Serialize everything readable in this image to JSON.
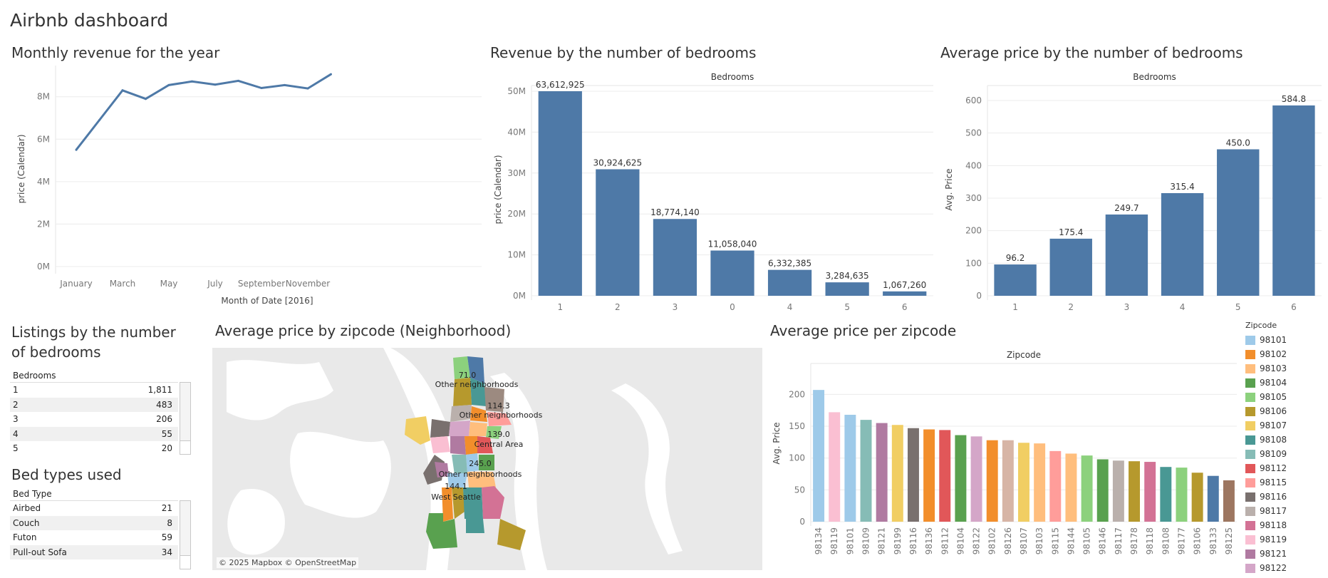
{
  "dashboard_title": "Airbnb dashboard",
  "line_panel": {
    "title": "Monthly revenue for the year"
  },
  "rev_panel": {
    "title": "Revenue by the number of bedrooms"
  },
  "avg_panel": {
    "title": "Average price by the number of bedrooms"
  },
  "listings_panel": {
    "title_line1": "Listings by the number",
    "title_line2": "of bedrooms",
    "column_header": "Bedrooms",
    "rows": [
      {
        "label": "1",
        "value": "1,811"
      },
      {
        "label": "2",
        "value": "483"
      },
      {
        "label": "3",
        "value": "206"
      },
      {
        "label": "4",
        "value": "55"
      },
      {
        "label": "5",
        "value": "20"
      }
    ]
  },
  "bedtypes_panel": {
    "title": "Bed types used",
    "column_header": "Bed Type",
    "rows": [
      {
        "label": "Airbed",
        "value": "21"
      },
      {
        "label": "Couch",
        "value": "8"
      },
      {
        "label": "Futon",
        "value": "59"
      },
      {
        "label": "Pull-out Sofa",
        "value": "34"
      }
    ]
  },
  "map_panel": {
    "title": "Average price by zipcode (Neighborhood)",
    "credit": "© 2025 Mapbox © OpenStreetMap",
    "labels": [
      "71.0",
      "Other neighborhoods",
      "114.3",
      "Other neighborhoods",
      "139.0",
      "Central Area",
      "245.0",
      "Other neighborhoods",
      "144.1",
      "West Seattle"
    ]
  },
  "zip_panel": {
    "title": "Average price per zipcode"
  },
  "legend": {
    "title": "Zipcode",
    "items": [
      {
        "zip": "98101",
        "color": "#9ecae9"
      },
      {
        "zip": "98102",
        "color": "#f28e2b"
      },
      {
        "zip": "98103",
        "color": "#ffbe7d"
      },
      {
        "zip": "98104",
        "color": "#59a14f"
      },
      {
        "zip": "98105",
        "color": "#8cd17d"
      },
      {
        "zip": "98106",
        "color": "#b6992d"
      },
      {
        "zip": "98107",
        "color": "#f1ce63"
      },
      {
        "zip": "98108",
        "color": "#499894"
      },
      {
        "zip": "98109",
        "color": "#86bcb6"
      },
      {
        "zip": "98112",
        "color": "#e15759"
      },
      {
        "zip": "98115",
        "color": "#ff9d9a"
      },
      {
        "zip": "98116",
        "color": "#79706e"
      },
      {
        "zip": "98117",
        "color": "#bab0ac"
      },
      {
        "zip": "98118",
        "color": "#d37295"
      },
      {
        "zip": "98119",
        "color": "#fabfd2"
      },
      {
        "zip": "98121",
        "color": "#b07aa1"
      },
      {
        "zip": "98122",
        "color": "#d4a6c8"
      }
    ]
  },
  "chart_data": [
    {
      "type": "line",
      "title": "Monthly revenue for the year",
      "xlabel": "Month of Date [2016]",
      "ylabel": "price (Calendar)",
      "x": [
        "January",
        "February",
        "March",
        "April",
        "May",
        "June",
        "July",
        "August",
        "September",
        "October",
        "November",
        "December"
      ],
      "x_tick_labels": [
        "January",
        "March",
        "May",
        "July",
        "September",
        "November"
      ],
      "values": [
        5500000,
        6900000,
        8300000,
        7900000,
        8550000,
        8720000,
        8570000,
        8750000,
        8410000,
        8550000,
        8390000,
        9060000
      ],
      "y_ticks": [
        "0M",
        "2M",
        "4M",
        "6M",
        "8M"
      ],
      "ylim": [
        0,
        9200000
      ],
      "color": "#4e79a7",
      "grid": true
    },
    {
      "type": "bar",
      "title": "Revenue by the number of bedrooms",
      "header": "Bedrooms",
      "ylabel": "price (Calendar)",
      "categories": [
        "1",
        "2",
        "3",
        "0",
        "4",
        "5",
        "6"
      ],
      "values": [
        63612925,
        30924625,
        18774140,
        11058040,
        6332385,
        3284635,
        1067260
      ],
      "data_labels": [
        "63,612,925",
        "30,924,625",
        "18,774,140",
        "11,058,040",
        "6,332,385",
        "3,284,635",
        "1,067,260"
      ],
      "y_ticks": [
        "0M",
        "10M",
        "20M",
        "30M",
        "40M",
        "50M"
      ],
      "ylim": [
        0,
        50000000
      ],
      "color": "#4e79a7",
      "grid": true
    },
    {
      "type": "bar",
      "title": "Average price by the number of bedrooms",
      "header": "Bedrooms",
      "ylabel": "Avg. Price",
      "categories": [
        "1",
        "2",
        "3",
        "4",
        "5",
        "6"
      ],
      "values": [
        96.2,
        175.4,
        249.7,
        315.4,
        450.0,
        584.8
      ],
      "data_labels": [
        "96.2",
        "175.4",
        "249.7",
        "315.4",
        "450.0",
        "584.8"
      ],
      "y_ticks": [
        "0",
        "100",
        "200",
        "300",
        "400",
        "500",
        "600"
      ],
      "ylim": [
        0,
        600
      ],
      "color": "#4e79a7",
      "grid": true
    },
    {
      "type": "bar",
      "title": "Average price per zipcode",
      "header": "Zipcode",
      "ylabel": "Avg. Price",
      "categories": [
        "98134",
        "98119",
        "98101",
        "98109",
        "98121",
        "98199",
        "98116",
        "98136",
        "98112",
        "98104",
        "98122",
        "98102",
        "98126",
        "98107",
        "98103",
        "98115",
        "98144",
        "98105",
        "98146",
        "98117",
        "98178",
        "98118",
        "98108",
        "98177",
        "98106",
        "98133",
        "98125"
      ],
      "values": [
        207,
        172,
        168,
        160,
        155,
        152,
        147,
        145,
        144,
        136,
        134,
        128,
        128,
        124,
        123,
        111,
        107,
        104,
        98,
        96,
        95,
        94,
        86,
        85,
        77,
        72,
        65
      ],
      "colors": [
        "#9ecae9",
        "#fabfd2",
        "#9ecae9",
        "#86bcb6",
        "#b07aa1",
        "#f1ce63",
        "#79706e",
        "#f28e2b",
        "#e15759",
        "#59a14f",
        "#d4a6c8",
        "#f28e2b",
        "#d7b5a6",
        "#f1ce63",
        "#ffbe7d",
        "#ff9d9a",
        "#ffbe7d",
        "#8cd17d",
        "#59a14f",
        "#bab0ac",
        "#b6992d",
        "#d37295",
        "#499894",
        "#8cd17d",
        "#b6992d",
        "#4e79a7",
        "#9d7660"
      ],
      "y_ticks": [
        "0",
        "50",
        "100",
        "150",
        "200"
      ],
      "ylim": [
        0,
        215
      ],
      "grid": true
    }
  ]
}
